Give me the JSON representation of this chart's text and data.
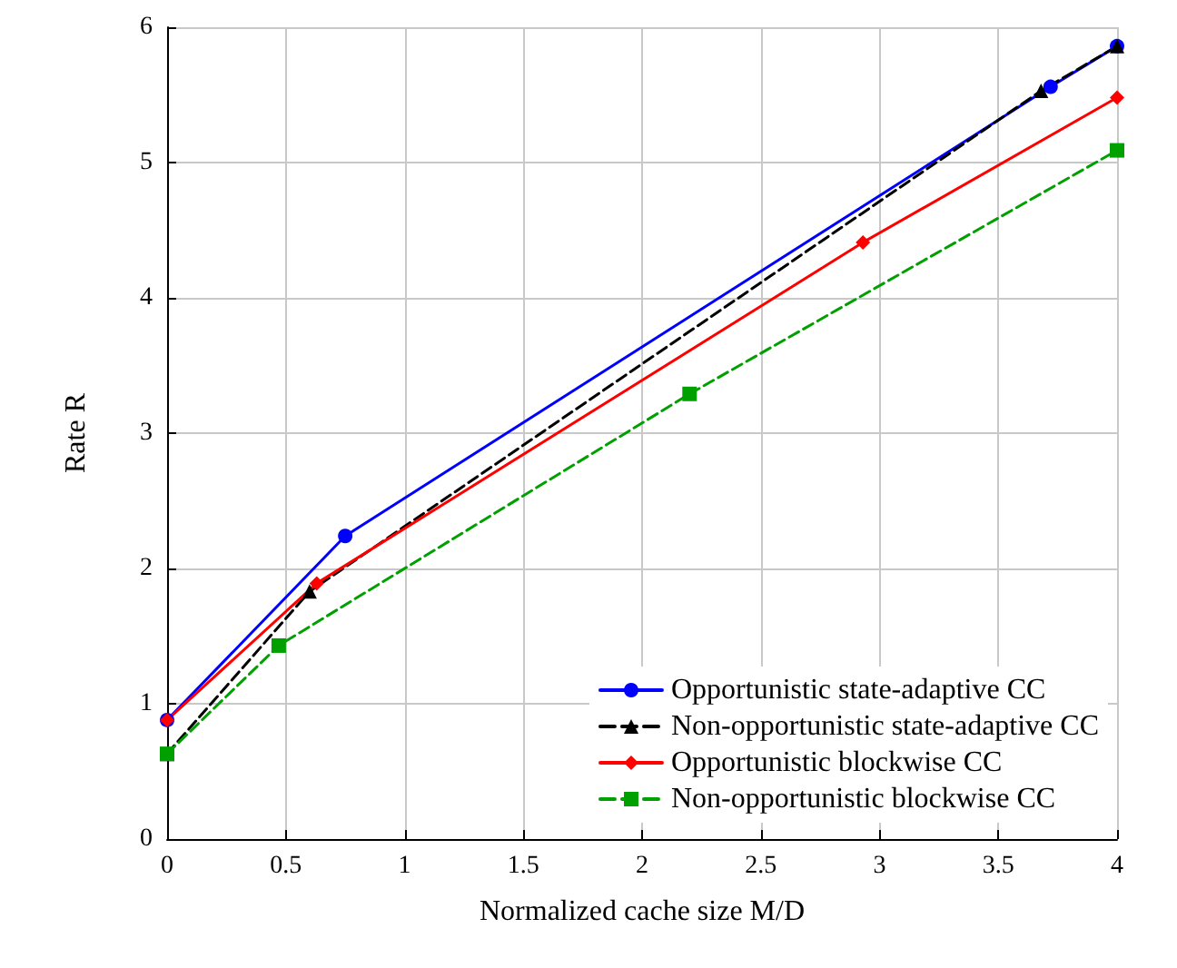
{
  "chart_data": {
    "type": "line",
    "xlabel": "Normalized cache size M/D",
    "ylabel": "Rate R",
    "xlim": [
      0,
      4
    ],
    "ylim": [
      0,
      6
    ],
    "xticks": [
      0,
      0.5,
      1,
      1.5,
      2,
      2.5,
      3,
      3.5,
      4
    ],
    "yticks": [
      0,
      1,
      2,
      3,
      4,
      5,
      6
    ],
    "grid": true,
    "legend": "bottom right",
    "series": [
      {
        "name": "Opportunistic state-adaptive CC",
        "color": "#0000ff",
        "marker": "circle",
        "line_style": "solid",
        "x": [
          0,
          0.75,
          3.72,
          4
        ],
        "values": [
          0.88,
          2.24,
          5.56,
          5.86
        ]
      },
      {
        "name": "Non-opportunistic state-adaptive CC",
        "color": "#000000",
        "marker": "triangle",
        "line_style": "dashed",
        "x": [
          0,
          0.6,
          3.68,
          4
        ],
        "values": [
          0.63,
          1.83,
          5.53,
          5.86
        ]
      },
      {
        "name": "Opportunistic blockwise CC",
        "color": "#ff0000",
        "marker": "diamond",
        "line_style": "solid",
        "x": [
          0,
          0.63,
          2.93,
          4
        ],
        "values": [
          0.88,
          1.89,
          4.41,
          5.48
        ]
      },
      {
        "name": "Non-opportunistic blockwise CC",
        "color": "#00a000",
        "marker": "square",
        "line_style": "dashed",
        "x": [
          0,
          0.47,
          2.2,
          4
        ],
        "values": [
          0.63,
          1.43,
          3.29,
          5.09
        ]
      }
    ]
  }
}
